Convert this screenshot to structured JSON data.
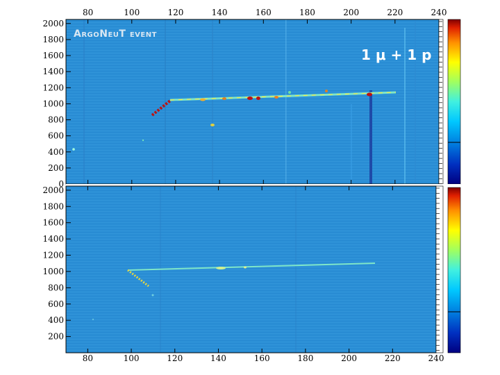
{
  "title": "ArgoNeuT event",
  "event_label": "1 μ + 1 p",
  "x_ticks": [
    80,
    100,
    120,
    140,
    160,
    180,
    200,
    220,
    240
  ],
  "y_ticks_top": [
    0,
    200,
    400,
    600,
    800,
    1000,
    1200,
    1400,
    1600,
    1800,
    2000
  ],
  "y_ticks_bottom": [
    200,
    400,
    600,
    800,
    1000,
    1200,
    1400,
    1600,
    1800,
    2000
  ],
  "x_range": [
    70,
    240
  ],
  "y_range": [
    0,
    2050
  ],
  "colors": {
    "background": "#2b8fd6",
    "track": "#f0e64a",
    "hot": "#b81414"
  },
  "colormap": [
    "#000080",
    "#0030c0",
    "#0080e0",
    "#00c8ff",
    "#40f0e0",
    "#a0ff60",
    "#ffff00",
    "#ff9000",
    "#e02000",
    "#800000"
  ]
}
